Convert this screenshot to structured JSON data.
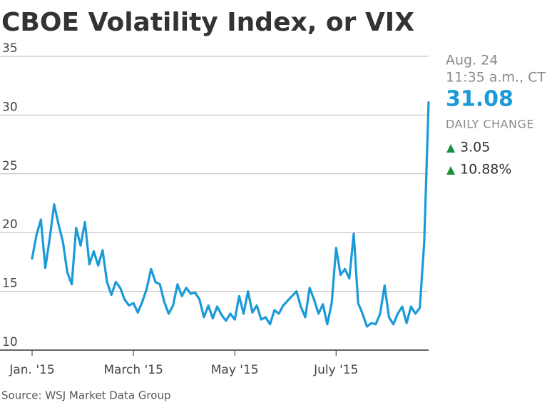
{
  "chart_data": {
    "type": "line",
    "title": "CBOE Volatility Index, or VIX",
    "categories": [
      "Jan. '15",
      null,
      null,
      null,
      null,
      null,
      null,
      null,
      null,
      null,
      null,
      null,
      null,
      null,
      null,
      null,
      null,
      null,
      null,
      null,
      null,
      null,
      null,
      "March '15",
      null,
      null,
      null,
      null,
      null,
      null,
      null,
      null,
      null,
      null,
      null,
      null,
      null,
      null,
      null,
      null,
      null,
      null,
      null,
      null,
      null,
      null,
      "May '15",
      null,
      null,
      null,
      null,
      null,
      null,
      null,
      null,
      null,
      null,
      null,
      null,
      null,
      null,
      null,
      null,
      null,
      null,
      null,
      null,
      null,
      null,
      "July '15",
      null,
      null,
      null,
      null,
      null,
      null,
      null,
      null,
      null,
      null,
      null,
      null,
      null,
      null,
      null,
      null,
      null,
      null,
      null,
      null,
      null
    ],
    "values": [
      17.8,
      19.8,
      21.1,
      17.0,
      19.5,
      22.4,
      20.7,
      19.2,
      16.6,
      15.6,
      20.4,
      18.9,
      20.9,
      17.3,
      18.4,
      17.2,
      18.5,
      15.8,
      14.7,
      15.8,
      15.3,
      14.3,
      13.8,
      14.0,
      13.2,
      14.1,
      15.2,
      16.9,
      15.8,
      15.6,
      14.1,
      13.1,
      13.8,
      15.6,
      14.6,
      15.3,
      14.8,
      14.9,
      14.3,
      12.8,
      13.8,
      12.7,
      13.7,
      13.0,
      12.5,
      13.1,
      12.6,
      14.6,
      13.1,
      15.0,
      13.2,
      13.8,
      12.6,
      12.8,
      12.2,
      13.4,
      13.1,
      13.8,
      14.2,
      14.6,
      15.0,
      13.7,
      12.8,
      15.3,
      14.3,
      13.1,
      13.9,
      12.2,
      14.0,
      18.7,
      16.4,
      16.9,
      16.1,
      19.9,
      14.0,
      13.1,
      12.0,
      12.3,
      12.2,
      13.1,
      15.5,
      12.8,
      12.2,
      13.1,
      13.7,
      12.3,
      13.7,
      13.1,
      13.6,
      19.2,
      31.08
    ],
    "color": "#1b9ad8",
    "ylim": [
      10,
      35
    ],
    "yticks": [
      10,
      15,
      20,
      25,
      30,
      35
    ],
    "grid": true,
    "annotation": {
      "date": "Aug. 24",
      "time": "11:35 a.m., CT",
      "change_label": "DAILY CHANGE",
      "change": 3.05,
      "change_pct": "10.88%"
    },
    "source": "Source: WSJ Market Data Group"
  }
}
